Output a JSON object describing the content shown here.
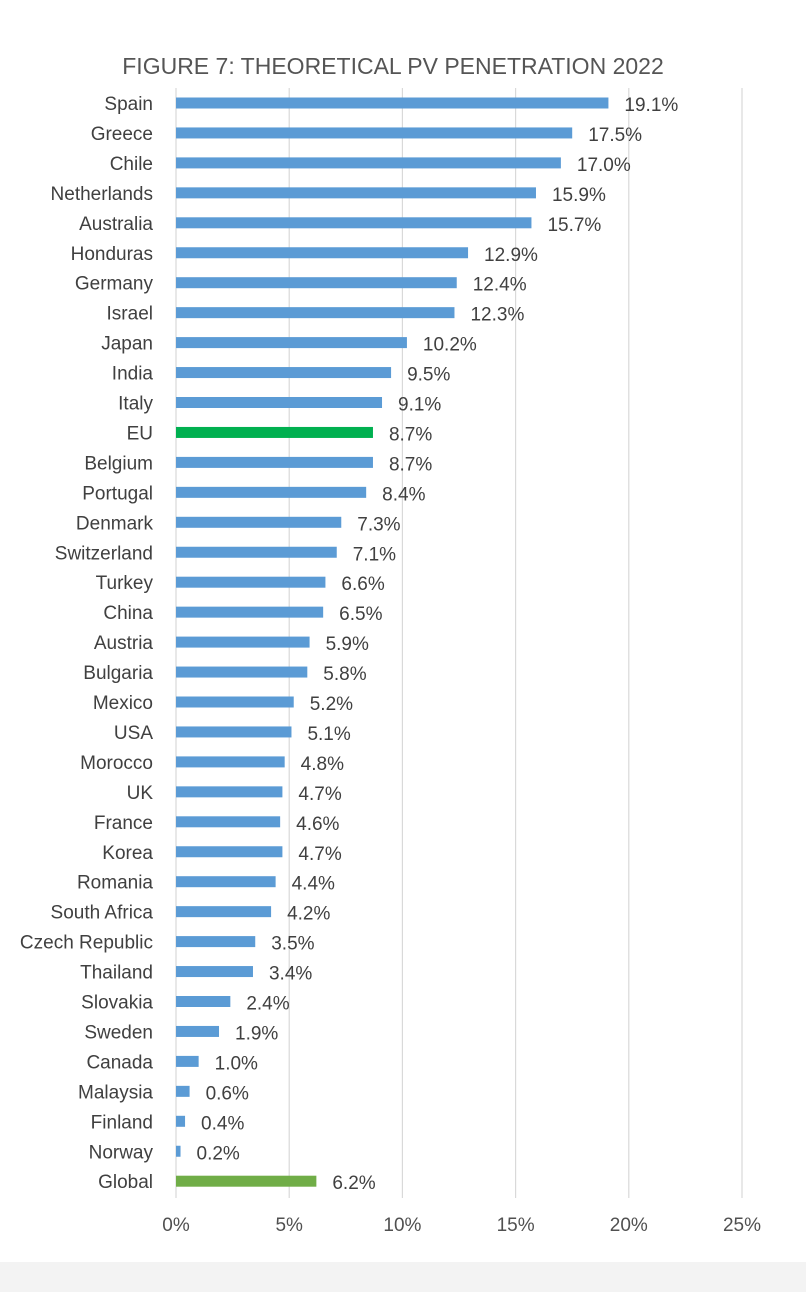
{
  "chart_data": {
    "type": "bar",
    "orientation": "horizontal",
    "title": "FIGURE 7: THEORETICAL PV PENETRATION 2022",
    "xlabel": "",
    "ylabel": "",
    "xlim": [
      0,
      25
    ],
    "ticks": [
      0,
      5,
      10,
      15,
      20,
      25
    ],
    "tick_labels": [
      "0%",
      "5%",
      "10%",
      "15%",
      "20%",
      "25%"
    ],
    "grid": true,
    "value_suffix": "%",
    "colors": {
      "default": "#5b9bd5",
      "EU": "#00b050",
      "Global": "#70ad47"
    },
    "categories": [
      "Spain",
      "Greece",
      "Chile",
      "Netherlands",
      "Australia",
      "Honduras",
      "Germany",
      "Israel",
      "Japan",
      "India",
      "Italy",
      "EU",
      "Belgium",
      "Portugal",
      "Denmark",
      "Switzerland",
      "Turkey",
      "China",
      "Austria",
      "Bulgaria",
      "Mexico",
      "USA",
      "Morocco",
      "UK",
      "France",
      "Korea",
      "Romania",
      "South Africa",
      "Czech Republic",
      "Thailand",
      "Slovakia",
      "Sweden",
      "Canada",
      "Malaysia",
      "Finland",
      "Norway",
      "Global"
    ],
    "values": [
      19.1,
      17.5,
      17.0,
      15.9,
      15.7,
      12.9,
      12.4,
      12.3,
      10.2,
      9.5,
      9.1,
      8.7,
      8.7,
      8.4,
      7.3,
      7.1,
      6.6,
      6.5,
      5.9,
      5.8,
      5.2,
      5.1,
      4.8,
      4.7,
      4.6,
      4.7,
      4.4,
      4.2,
      3.5,
      3.4,
      2.4,
      1.9,
      1.0,
      0.6,
      0.4,
      0.2,
      6.2
    ],
    "data_labels": [
      "19.1%",
      "17.5%",
      "17.0%",
      "15.9%",
      "15.7%",
      "12.9%",
      "12.4%",
      "12.3%",
      "10.2%",
      "9.5%",
      "9.1%",
      "8.7%",
      "8.7%",
      "8.4%",
      "7.3%",
      "7.1%",
      "6.6%",
      "6.5%",
      "5.9%",
      "5.8%",
      "5.2%",
      "5.1%",
      "4.8%",
      "4.7%",
      "4.6%",
      "4.7%",
      "4.4%",
      "4.2%",
      "3.5%",
      "3.4%",
      "2.4%",
      "1.9%",
      "1.0%",
      "0.6%",
      "0.4%",
      "0.2%",
      "6.2%"
    ]
  }
}
